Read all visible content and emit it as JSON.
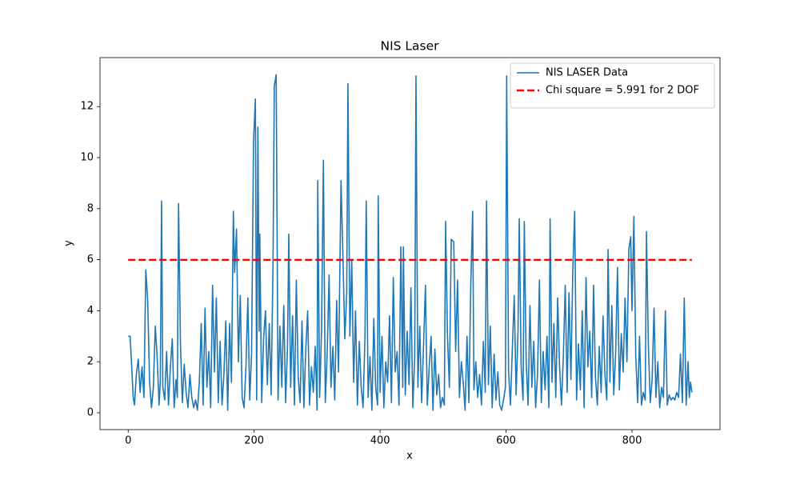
{
  "chart_data": {
    "type": "line",
    "title": "NIS Laser",
    "x_label": "x",
    "y_label": "y",
    "xlim": [
      -44.75,
      939.75
    ],
    "ylim": [
      -0.66,
      13.92
    ],
    "xticks": [
      0,
      200,
      400,
      600,
      800
    ],
    "yticks": [
      0,
      2,
      4,
      6,
      8,
      10,
      12
    ],
    "legend": "upper right",
    "series": [
      {
        "name": "NIS LASER Data",
        "color": "#1f77b4",
        "dash": "solid",
        "x": [
          0,
          3,
          5,
          8,
          10,
          13,
          16,
          19,
          22,
          25,
          28,
          31,
          34,
          37,
          40,
          43,
          46,
          49,
          51,
          53,
          55,
          58,
          61,
          64,
          67,
          70,
          73,
          76,
          78,
          80,
          83,
          86,
          89,
          92,
          95,
          98,
          101,
          104,
          107,
          110,
          113,
          116,
          119,
          122,
          125,
          128,
          131,
          134,
          137,
          140,
          143,
          146,
          149,
          152,
          155,
          158,
          161,
          164,
          167,
          169,
          172,
          175,
          178,
          181,
          184,
          187,
          190,
          193,
          196,
          199,
          202,
          204,
          206,
          208,
          209,
          212,
          215,
          218,
          221,
          224,
          227,
          230,
          232,
          235,
          238,
          241,
          244,
          247,
          250,
          253,
          255,
          258,
          261,
          264,
          267,
          270,
          273,
          276,
          279,
          282,
          285,
          288,
          291,
          294,
          297,
          300,
          301,
          304,
          307,
          310,
          313,
          316,
          319,
          322,
          325,
          328,
          331,
          334,
          338,
          341,
          344,
          347,
          349,
          352,
          355,
          358,
          361,
          364,
          367,
          370,
          373,
          376,
          378,
          381,
          384,
          387,
          390,
          393,
          396,
          397,
          400,
          403,
          406,
          409,
          412,
          415,
          418,
          421,
          424,
          427,
          430,
          433,
          436,
          437,
          440,
          443,
          446,
          449,
          452,
          455,
          457,
          460,
          463,
          466,
          469,
          472,
          475,
          478,
          481,
          484,
          487,
          490,
          493,
          496,
          499,
          502,
          504,
          507,
          510,
          513,
          517,
          520,
          523,
          526,
          529,
          532,
          535,
          538,
          541,
          544,
          547,
          549,
          552,
          555,
          558,
          561,
          564,
          567,
          569,
          572,
          575,
          578,
          581,
          584,
          587,
          590,
          593,
          596,
          599,
          601,
          604,
          607,
          610,
          613,
          616,
          619,
          621,
          624,
          627,
          629,
          632,
          635,
          638,
          641,
          644,
          647,
          650,
          653,
          656,
          659,
          662,
          665,
          668,
          670,
          673,
          676,
          679,
          682,
          685,
          688,
          691,
          694,
          697,
          700,
          703,
          706,
          709,
          712,
          715,
          718,
          721,
          724,
          727,
          730,
          733,
          736,
          739,
          742,
          745,
          748,
          751,
          754,
          757,
          760,
          762,
          765,
          768,
          771,
          774,
          777,
          780,
          783,
          786,
          789,
          792,
          795,
          798,
          800,
          803,
          806,
          809,
          812,
          815,
          818,
          821,
          823,
          826,
          829,
          832,
          835,
          838,
          841,
          844,
          847,
          850,
          853,
          856,
          859,
          862,
          865,
          868,
          871,
          874,
          877,
          880,
          883,
          886,
          889,
          891,
          893,
          895
        ],
        "values": [
          3.0,
          3.0,
          2.1,
          0.6,
          0.3,
          1.5,
          2.1,
          0.8,
          1.8,
          0.6,
          5.6,
          4.4,
          1.2,
          0.2,
          1.0,
          3.4,
          2.2,
          0.3,
          1.2,
          8.3,
          1.0,
          0.5,
          2.4,
          0.3,
          1.8,
          2.9,
          0.2,
          1.3,
          0.6,
          8.2,
          2.7,
          0.4,
          1.9,
          0.8,
          0.2,
          1.5,
          0.6,
          0.2,
          0.5,
          0.1,
          1.2,
          3.5,
          0.3,
          4.1,
          1.0,
          2.4,
          0.2,
          5.0,
          1.6,
          4.5,
          0.4,
          2.8,
          0.3,
          1.5,
          3.6,
          0.1,
          3.5,
          1.2,
          7.9,
          5.5,
          7.2,
          2.0,
          4.6,
          0.6,
          0.2,
          1.8,
          4.5,
          0.5,
          2.4,
          10.6,
          12.3,
          0.5,
          11.2,
          3.2,
          7.0,
          0.4,
          2.9,
          4.0,
          1.1,
          3.5,
          0.7,
          5.8,
          12.8,
          13.25,
          0.5,
          3.4,
          1.0,
          4.2,
          0.4,
          2.6,
          7.0,
          1.0,
          3.8,
          0.3,
          5.2,
          1.4,
          0.4,
          3.6,
          0.2,
          2.5,
          4.0,
          0.3,
          1.8,
          0.8,
          2.6,
          0.1,
          9.1,
          0.6,
          3.2,
          9.9,
          0.4,
          2.3,
          5.4,
          1.0,
          2.6,
          0.5,
          4.4,
          1.6,
          9.1,
          6.1,
          2.9,
          4.7,
          12.9,
          3.0,
          6.0,
          1.2,
          4.0,
          0.3,
          2.8,
          1.0,
          0.2,
          3.0,
          8.3,
          0.6,
          2.2,
          0.1,
          3.7,
          1.0,
          0.3,
          8.5,
          0.8,
          3.0,
          0.2,
          2.0,
          1.2,
          3.8,
          0.4,
          5.3,
          1.6,
          2.4,
          0.3,
          6.5,
          1.0,
          6.5,
          0.7,
          3.2,
          1.1,
          4.9,
          0.2,
          2.2,
          13.2,
          1.0,
          3.4,
          0.4,
          2.6,
          5.0,
          0.3,
          1.8,
          3.0,
          0.1,
          2.5,
          0.7,
          1.5,
          0.2,
          0.6,
          0.3,
          7.5,
          3.0,
          1.0,
          6.8,
          6.7,
          2.4,
          5.2,
          0.6,
          2.0,
          1.2,
          0.1,
          3.0,
          0.4,
          5.0,
          7.9,
          0.9,
          2.0,
          0.6,
          1.5,
          0.3,
          2.8,
          0.8,
          8.3,
          1.1,
          3.4,
          0.2,
          2.3,
          0.5,
          1.6,
          0.3,
          0.1,
          0.5,
          1.0,
          13.2,
          1.6,
          0.3,
          2.5,
          4.6,
          0.7,
          3.2,
          7.6,
          1.8,
          0.5,
          7.5,
          2.0,
          0.3,
          4.2,
          1.0,
          2.8,
          0.2,
          1.5,
          5.2,
          0.4,
          2.4,
          0.9,
          3.0,
          0.2,
          7.6,
          1.2,
          3.5,
          0.6,
          4.5,
          1.8,
          0.3,
          2.2,
          5.0,
          0.8,
          4.7,
          1.3,
          5.6,
          7.9,
          0.5,
          2.7,
          0.9,
          4.0,
          0.2,
          5.3,
          1.8,
          3.2,
          0.6,
          5.0,
          1.4,
          0.3,
          2.6,
          0.8,
          3.8,
          1.5,
          0.5,
          6.4,
          1.2,
          4.2,
          0.7,
          2.3,
          5.7,
          0.9,
          3.1,
          1.6,
          4.5,
          2.0,
          6.4,
          6.9,
          4.0,
          7.7,
          2.2,
          0.4,
          3.0,
          0.3,
          0.8,
          0.5,
          7.1,
          2.6,
          0.4,
          1.3,
          4.1,
          0.6,
          2.0,
          0.2,
          1.0,
          0.6,
          4.0,
          0.3,
          0.7,
          0.5,
          0.6,
          0.5,
          0.8,
          0.6,
          2.3,
          0.4,
          4.5,
          0.3,
          2.0,
          0.6,
          1.2,
          0.8
        ]
      },
      {
        "name": "Chi square = 5.991 for 2 DOF",
        "color": "#ff0000",
        "dash": "dashed",
        "x": [
          0,
          895
        ],
        "values": [
          5.991,
          5.991
        ]
      }
    ]
  }
}
